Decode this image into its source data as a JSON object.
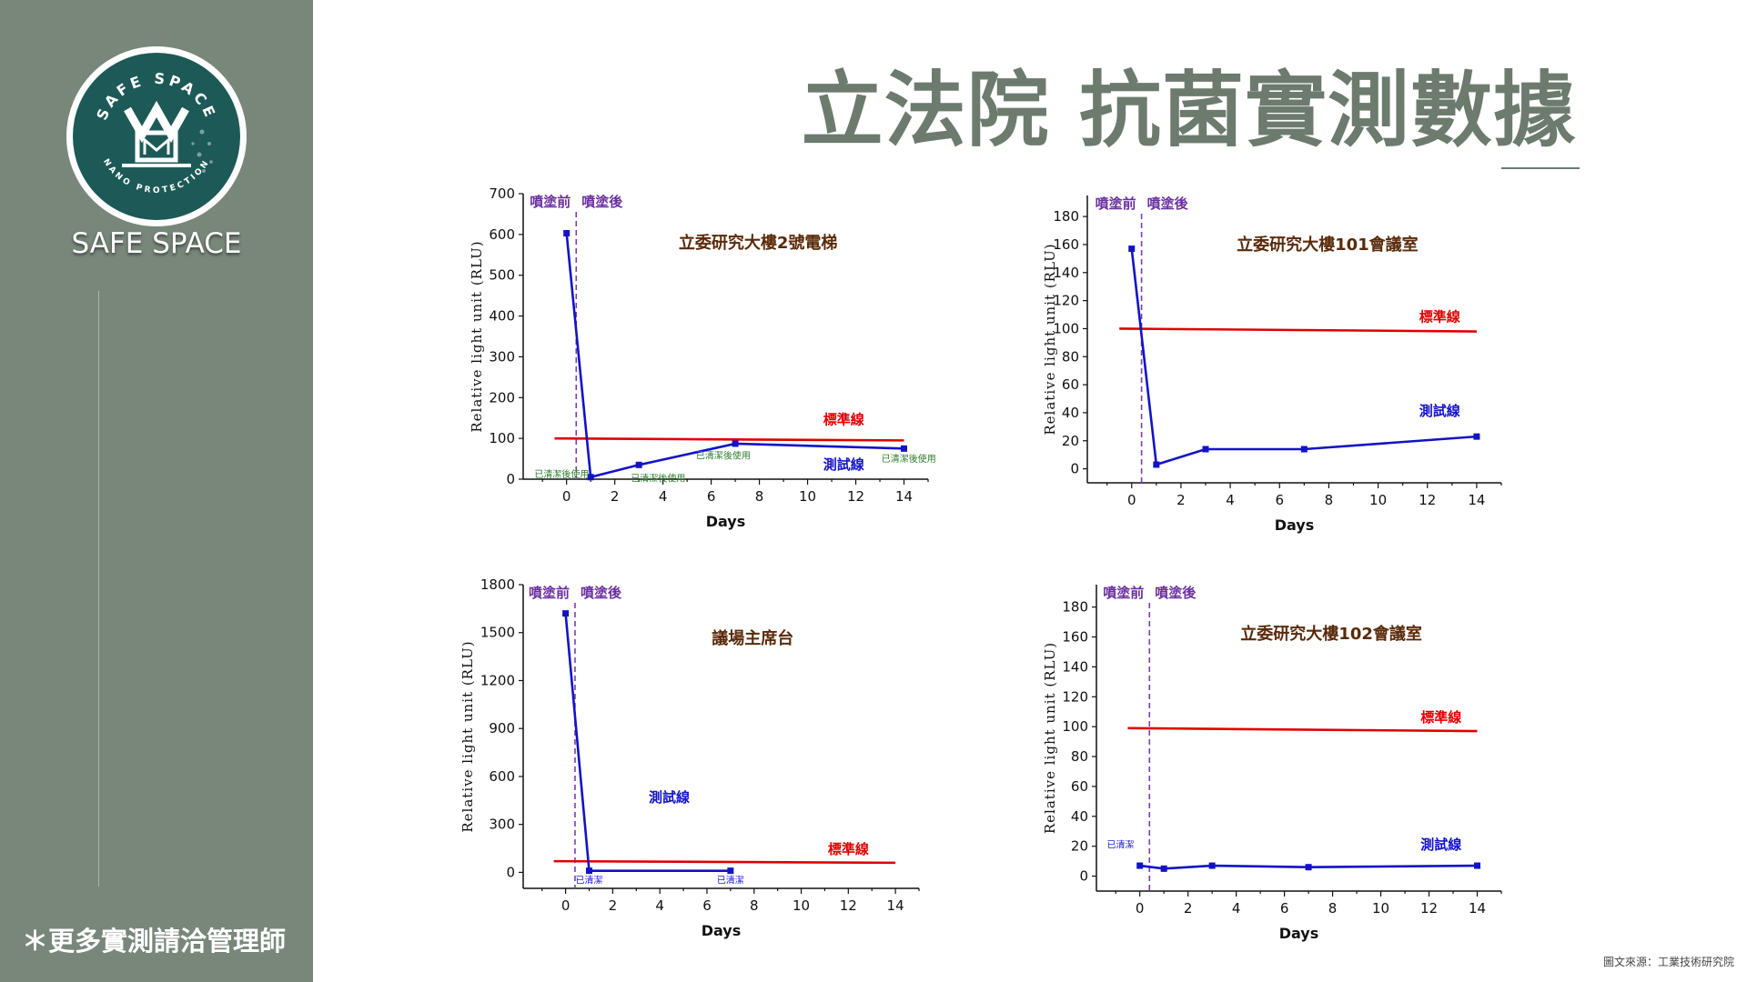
{
  "brand": {
    "name": "SAFE SPACE",
    "logo_top_text": "SAFE SPACE",
    "logo_bottom_text": "NANO PROTECTION",
    "logo_monogram": "YM",
    "logo_color": "#1d5a57"
  },
  "sidebar": {
    "note": "＊更多實測請洽管理師",
    "bg_color": "#78877a"
  },
  "page": {
    "title": "立法院 抗菌實測數據",
    "source": "圖文來源：工業技術研究院"
  },
  "colors": {
    "standard": "#e00000",
    "test": "#1212c8",
    "phase_line": "#7a3fb0"
  },
  "chart_data": [
    {
      "type": "line",
      "title": "立委研究大樓2號電梯",
      "xlabel": "Days",
      "ylabel": "Relative light unit (RLU)",
      "xlim": [
        -1.8,
        15
      ],
      "ylim": [
        0,
        700
      ],
      "xticks": [
        0,
        2,
        4,
        6,
        8,
        10,
        12,
        14
      ],
      "yticks": [
        0,
        100,
        200,
        300,
        400,
        500,
        600,
        700
      ],
      "phase_labels": [
        "噴塗前",
        "噴塗後"
      ],
      "phase_x": 0.4,
      "series": [
        {
          "name": "標準線",
          "x": [
            -0.5,
            14
          ],
          "y": [
            100,
            95
          ],
          "markers": false
        },
        {
          "name": "測試線",
          "x": [
            0,
            1,
            3,
            7,
            14
          ],
          "y": [
            603,
            5,
            35,
            87,
            75
          ],
          "markers": true
        }
      ],
      "series_label_pos": [
        [
          11.5,
          135
        ],
        [
          11.5,
          25
        ]
      ],
      "annotations": [
        {
          "text": "已清潔後使用",
          "x": -0.2,
          "y": 5
        },
        {
          "text": "已清潔後使用",
          "x": 3.8,
          "y": -6
        },
        {
          "text": "已清潔後使用",
          "x": 6.5,
          "y": 50
        },
        {
          "text": "已清潔後使用",
          "x": 14.2,
          "y": 42
        }
      ]
    },
    {
      "type": "line",
      "title": "立委研究大樓101會議室",
      "xlabel": "Days",
      "ylabel": "Relative light unit (RLU)",
      "xlim": [
        -1.8,
        15
      ],
      "ylim": [
        -10,
        195
      ],
      "xticks": [
        0,
        2,
        4,
        6,
        8,
        10,
        12,
        14
      ],
      "yticks": [
        0,
        20,
        40,
        60,
        80,
        100,
        120,
        140,
        160,
        180
      ],
      "phase_labels": [
        "噴塗前",
        "噴塗後"
      ],
      "phase_x": 0.4,
      "series": [
        {
          "name": "標準線",
          "x": [
            -0.5,
            14
          ],
          "y": [
            100,
            98
          ],
          "markers": false
        },
        {
          "name": "測試線",
          "x": [
            0,
            1,
            3,
            7,
            14
          ],
          "y": [
            157,
            3,
            14,
            14,
            23
          ],
          "markers": true
        }
      ],
      "series_label_pos": [
        [
          12.5,
          105
        ],
        [
          12.5,
          38
        ]
      ],
      "annotations": []
    },
    {
      "type": "line",
      "title": "議場主席台",
      "xlabel": "Days",
      "ylabel": "Relative light unit (RLU)",
      "xlim": [
        -1.8,
        15
      ],
      "ylim": [
        -100,
        1800
      ],
      "xticks": [
        0,
        2,
        4,
        6,
        8,
        10,
        12,
        14
      ],
      "yticks": [
        0,
        300,
        600,
        900,
        1200,
        1500,
        1800
      ],
      "phase_labels": [
        "噴塗前",
        "噴塗後"
      ],
      "phase_x": 0.4,
      "series": [
        {
          "name": "標準線",
          "x": [
            -0.5,
            14
          ],
          "y": [
            70,
            60
          ],
          "markers": false
        },
        {
          "name": "測試線",
          "x": [
            0,
            1,
            7
          ],
          "y": [
            1620,
            10,
            10
          ],
          "markers": true
        }
      ],
      "series_label_pos": [
        [
          12,
          115
        ],
        [
          4.4,
          440
        ]
      ],
      "annotations": [
        {
          "text": "已清潔",
          "x": 1,
          "y": -70
        },
        {
          "text": "已清潔",
          "x": 7,
          "y": -70
        }
      ]
    },
    {
      "type": "line",
      "title": "立委研究大樓102會議室",
      "xlabel": "Days",
      "ylabel": "Relative light unit (RLU)",
      "xlim": [
        -1.8,
        15
      ],
      "ylim": [
        -10,
        195
      ],
      "xticks": [
        0,
        2,
        4,
        6,
        8,
        10,
        12,
        14
      ],
      "yticks": [
        0,
        20,
        40,
        60,
        80,
        100,
        120,
        140,
        160,
        180
      ],
      "phase_labels": [
        "噴塗前",
        "噴塗後"
      ],
      "phase_x": 0.4,
      "series": [
        {
          "name": "標準線",
          "x": [
            -0.5,
            14
          ],
          "y": [
            99,
            97
          ],
          "markers": false
        },
        {
          "name": "測試線",
          "x": [
            0,
            1,
            3,
            7,
            14
          ],
          "y": [
            7,
            5,
            7,
            6,
            7
          ],
          "markers": true
        }
      ],
      "series_label_pos": [
        [
          12.5,
          103
        ],
        [
          12.5,
          18
        ]
      ],
      "annotations": [
        {
          "text": "已清潔",
          "x": -0.8,
          "y": 19
        }
      ]
    }
  ]
}
